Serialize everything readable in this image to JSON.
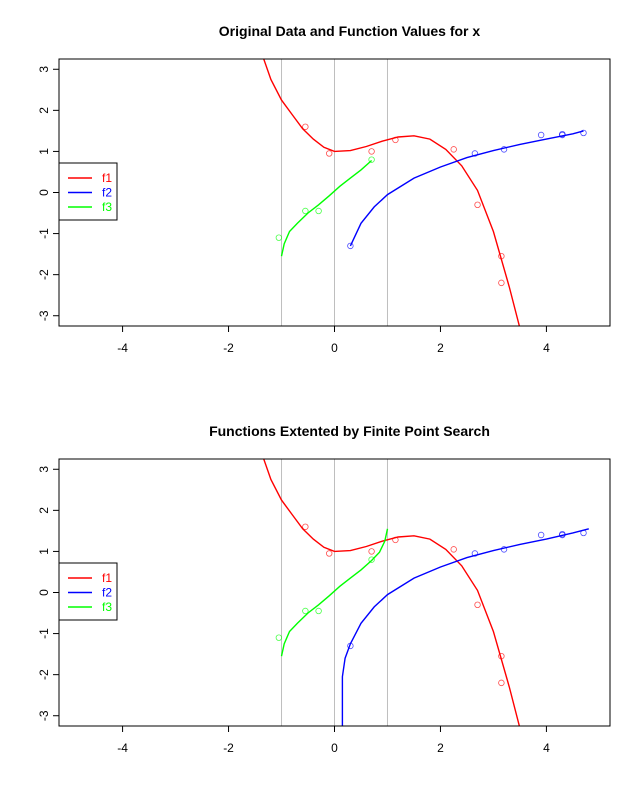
{
  "chart_data": [
    {
      "type": "line",
      "title": "Original Data and Function Values for x",
      "xlabel": "",
      "ylabel": "",
      "xlim": [
        -5.2,
        5.2
      ],
      "ylim": [
        -3.25,
        3.25
      ],
      "xticks": [
        -4,
        -2,
        0,
        2,
        4
      ],
      "yticks": [
        -3,
        -2,
        -1,
        0,
        1,
        2,
        3
      ],
      "vlines": [
        -1,
        0,
        1
      ],
      "legend": {
        "position": "left",
        "entries": [
          {
            "name": "f1",
            "color": "#ff0000"
          },
          {
            "name": "f2",
            "color": "#0000ff"
          },
          {
            "name": "f3",
            "color": "#00ff00"
          }
        ]
      },
      "series": [
        {
          "name": "f1",
          "color": "#ff0000",
          "x": [
            -1.35,
            -1.2,
            -1.0,
            -0.8,
            -0.6,
            -0.4,
            -0.2,
            0.0,
            0.3,
            0.6,
            0.9,
            1.2,
            1.5,
            1.8,
            2.1,
            2.4,
            2.7,
            3.0,
            3.3,
            3.5
          ],
          "y": [
            3.3,
            2.75,
            2.25,
            1.9,
            1.55,
            1.3,
            1.1,
            1.0,
            1.02,
            1.12,
            1.25,
            1.35,
            1.38,
            1.3,
            1.05,
            0.65,
            0.05,
            -0.95,
            -2.3,
            -3.3
          ]
        },
        {
          "name": "f2",
          "color": "#0000ff",
          "x": [
            0.3,
            0.5,
            0.75,
            1.0,
            1.5,
            2.0,
            2.5,
            3.0,
            3.5,
            4.0,
            4.5,
            4.7
          ],
          "y": [
            -1.3,
            -0.75,
            -0.35,
            -0.05,
            0.35,
            0.62,
            0.85,
            1.02,
            1.17,
            1.3,
            1.43,
            1.5
          ]
        },
        {
          "name": "f3",
          "color": "#00ff00",
          "x": [
            -1.0,
            -0.95,
            -0.85,
            -0.7,
            -0.5,
            -0.3,
            -0.1,
            0.1,
            0.3,
            0.5,
            0.7
          ],
          "y": [
            -1.55,
            -1.25,
            -0.95,
            -0.75,
            -0.5,
            -0.3,
            -0.08,
            0.15,
            0.35,
            0.55,
            0.78
          ]
        }
      ],
      "points": [
        {
          "series": "f1",
          "color": "#ff0000",
          "x": [
            -0.55,
            -0.1,
            0.7,
            1.15,
            2.25,
            2.7,
            3.15,
            3.15
          ],
          "y": [
            1.6,
            0.95,
            1.0,
            1.28,
            1.05,
            -0.3,
            -1.55,
            -2.2
          ]
        },
        {
          "series": "f2",
          "color": "#0000ff",
          "x": [
            0.3,
            2.65,
            3.2,
            3.9,
            4.3,
            4.3,
            4.7
          ],
          "y": [
            -1.3,
            0.95,
            1.05,
            1.4,
            1.4,
            1.42,
            1.45
          ]
        },
        {
          "series": "f3",
          "color": "#00ff00",
          "x": [
            -1.05,
            -0.55,
            -0.3,
            0.7
          ],
          "y": [
            -1.1,
            -0.45,
            -0.45,
            0.8
          ]
        }
      ]
    },
    {
      "type": "line",
      "title": "Functions Extented by Finite Point Search",
      "xlabel": "",
      "ylabel": "",
      "xlim": [
        -5.2,
        5.2
      ],
      "ylim": [
        -3.25,
        3.25
      ],
      "xticks": [
        -4,
        -2,
        0,
        2,
        4
      ],
      "yticks": [
        -3,
        -2,
        -1,
        0,
        1,
        2,
        3
      ],
      "vlines": [
        -1,
        0,
        1
      ],
      "legend": {
        "position": "left",
        "entries": [
          {
            "name": "f1",
            "color": "#ff0000"
          },
          {
            "name": "f2",
            "color": "#0000ff"
          },
          {
            "name": "f3",
            "color": "#00ff00"
          }
        ]
      },
      "series": [
        {
          "name": "f1",
          "color": "#ff0000",
          "x": [
            -1.35,
            -1.2,
            -1.0,
            -0.8,
            -0.6,
            -0.4,
            -0.2,
            0.0,
            0.3,
            0.6,
            0.9,
            1.2,
            1.5,
            1.8,
            2.1,
            2.4,
            2.7,
            3.0,
            3.3,
            3.5
          ],
          "y": [
            3.3,
            2.75,
            2.25,
            1.9,
            1.55,
            1.3,
            1.1,
            1.0,
            1.02,
            1.12,
            1.25,
            1.35,
            1.38,
            1.3,
            1.05,
            0.65,
            0.05,
            -0.95,
            -2.3,
            -3.3
          ]
        },
        {
          "name": "f2",
          "color": "#0000ff",
          "x": [
            0.15,
            0.15,
            0.2,
            0.3,
            0.5,
            0.75,
            1.0,
            1.5,
            2.0,
            2.5,
            3.0,
            3.5,
            4.0,
            4.5,
            4.8
          ],
          "y": [
            -3.3,
            -2.05,
            -1.6,
            -1.25,
            -0.75,
            -0.35,
            -0.05,
            0.35,
            0.62,
            0.85,
            1.02,
            1.17,
            1.3,
            1.45,
            1.55
          ]
        },
        {
          "name": "f3",
          "color": "#00ff00",
          "x": [
            -1.0,
            -0.95,
            -0.85,
            -0.7,
            -0.5,
            -0.3,
            -0.1,
            0.1,
            0.3,
            0.5,
            0.7,
            0.85,
            0.95,
            1.0
          ],
          "y": [
            -1.55,
            -1.25,
            -0.95,
            -0.75,
            -0.5,
            -0.3,
            -0.08,
            0.15,
            0.35,
            0.55,
            0.78,
            0.98,
            1.25,
            1.55
          ]
        }
      ],
      "points": [
        {
          "series": "f1",
          "color": "#ff0000",
          "x": [
            -0.55,
            -0.1,
            0.7,
            1.15,
            2.25,
            2.7,
            3.15,
            3.15
          ],
          "y": [
            1.6,
            0.95,
            1.0,
            1.28,
            1.05,
            -0.3,
            -1.55,
            -2.2
          ]
        },
        {
          "series": "f2",
          "color": "#0000ff",
          "x": [
            0.3,
            2.65,
            3.2,
            3.9,
            4.3,
            4.3,
            4.7
          ],
          "y": [
            -1.3,
            0.95,
            1.05,
            1.4,
            1.4,
            1.42,
            1.45
          ]
        },
        {
          "series": "f3",
          "color": "#00ff00",
          "x": [
            -1.05,
            -0.55,
            -0.3,
            0.7
          ],
          "y": [
            -1.1,
            -0.45,
            -0.45,
            0.8
          ]
        }
      ]
    }
  ]
}
